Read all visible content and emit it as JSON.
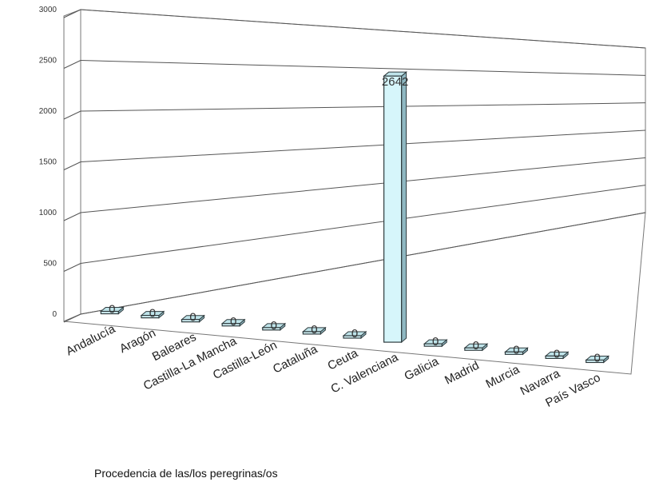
{
  "chart_data": {
    "type": "bar",
    "style": "3d-column",
    "categories": [
      "Andalucía",
      "Aragón",
      "Baleares",
      "Castilla-La Mancha",
      "Castilla-León",
      "Cataluña",
      "Ceuta",
      "C. Valenciana",
      "Galicia",
      "Madrid",
      "Murcia",
      "Navarra",
      "País Vasco"
    ],
    "values": [
      0,
      0,
      0,
      0,
      0,
      0,
      0,
      2642,
      0,
      0,
      0,
      0,
      0
    ],
    "data_labels": [
      "0",
      "0",
      "0",
      "0",
      "0",
      "0",
      "0",
      "2642",
      "0",
      "0",
      "0",
      "0",
      "0"
    ],
    "xlabel": "Procedencia de las/los peregrinas/os",
    "ylabel": "",
    "ylim": [
      0,
      3000
    ],
    "yticks": [
      0,
      500,
      1000,
      1500,
      2000,
      2500,
      3000
    ],
    "grid": true,
    "legend": "none",
    "colors": {
      "bar_fill": "#d6f6fb",
      "bar_side": "#8fb8c2",
      "bar_top": "#bfe4ea",
      "bar_edge": "#2f3b3e",
      "gridline": "#555555",
      "wall": "#ffffff"
    }
  }
}
